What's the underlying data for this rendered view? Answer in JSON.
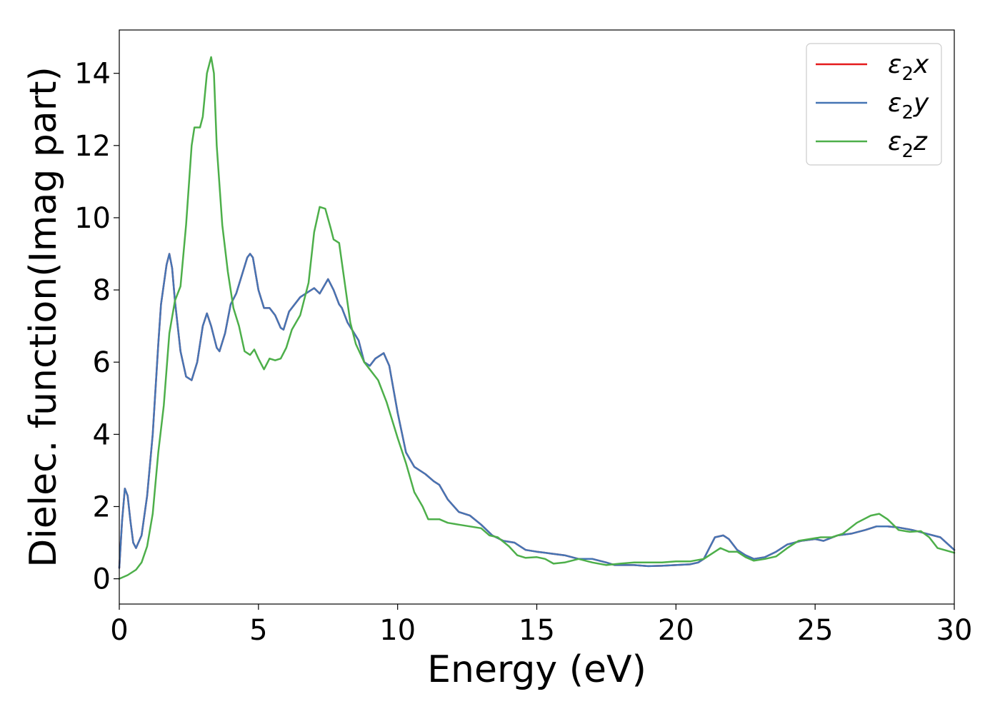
{
  "chart_data": {
    "type": "line",
    "title": "",
    "xlabel": "Energy (eV)",
    "ylabel": "Dielec. function(Imag part)",
    "xlim": [
      0,
      30
    ],
    "ylim": [
      -0.7,
      15.2
    ],
    "xticks": [
      "0",
      "5",
      "10",
      "15",
      "20",
      "25",
      "30"
    ],
    "yticks": [
      "0",
      "2",
      "4",
      "6",
      "8",
      "10",
      "12",
      "14"
    ],
    "grid": false,
    "legend_position": "top-right",
    "series": [
      {
        "name": "ε₂x",
        "legend_base": "ε",
        "legend_sub": "2",
        "legend_suffix": "x",
        "color": "#e41a1c",
        "points": [
          [
            0,
            0.3
          ],
          [
            0.1,
            1.6
          ],
          [
            0.2,
            2.5
          ],
          [
            0.3,
            2.3
          ],
          [
            0.4,
            1.6
          ],
          [
            0.5,
            1.0
          ],
          [
            0.6,
            0.85
          ],
          [
            0.8,
            1.2
          ],
          [
            1.0,
            2.3
          ],
          [
            1.2,
            4.0
          ],
          [
            1.4,
            6.5
          ],
          [
            1.5,
            7.6
          ],
          [
            1.7,
            8.7
          ],
          [
            1.8,
            9.0
          ],
          [
            1.9,
            8.6
          ],
          [
            2.0,
            7.7
          ],
          [
            2.2,
            6.3
          ],
          [
            2.4,
            5.6
          ],
          [
            2.6,
            5.5
          ],
          [
            2.8,
            6.0
          ],
          [
            3.0,
            7.0
          ],
          [
            3.15,
            7.35
          ],
          [
            3.3,
            7.0
          ],
          [
            3.5,
            6.4
          ],
          [
            3.6,
            6.3
          ],
          [
            3.8,
            6.8
          ],
          [
            4.0,
            7.6
          ],
          [
            4.2,
            7.9
          ],
          [
            4.4,
            8.4
          ],
          [
            4.6,
            8.9
          ],
          [
            4.7,
            9.0
          ],
          [
            4.8,
            8.9
          ],
          [
            5.0,
            8.0
          ],
          [
            5.2,
            7.5
          ],
          [
            5.4,
            7.5
          ],
          [
            5.6,
            7.3
          ],
          [
            5.8,
            6.95
          ],
          [
            5.9,
            6.9
          ],
          [
            6.1,
            7.4
          ],
          [
            6.5,
            7.8
          ],
          [
            7.0,
            8.05
          ],
          [
            7.2,
            7.9
          ],
          [
            7.5,
            8.3
          ],
          [
            7.7,
            8.0
          ],
          [
            7.9,
            7.6
          ],
          [
            8.0,
            7.5
          ],
          [
            8.2,
            7.1
          ],
          [
            8.4,
            6.85
          ],
          [
            8.6,
            6.6
          ],
          [
            8.8,
            6.0
          ],
          [
            9.0,
            5.9
          ],
          [
            9.2,
            6.1
          ],
          [
            9.5,
            6.25
          ],
          [
            9.7,
            5.9
          ],
          [
            10.0,
            4.6
          ],
          [
            10.3,
            3.5
          ],
          [
            10.6,
            3.1
          ],
          [
            11.0,
            2.9
          ],
          [
            11.3,
            2.7
          ],
          [
            11.5,
            2.6
          ],
          [
            11.8,
            2.2
          ],
          [
            12.2,
            1.85
          ],
          [
            12.6,
            1.75
          ],
          [
            13.0,
            1.5
          ],
          [
            13.4,
            1.2
          ],
          [
            13.8,
            1.05
          ],
          [
            14.2,
            1.0
          ],
          [
            14.6,
            0.8
          ],
          [
            15.0,
            0.75
          ],
          [
            15.5,
            0.7
          ],
          [
            16.0,
            0.65
          ],
          [
            16.5,
            0.55
          ],
          [
            17.0,
            0.55
          ],
          [
            17.5,
            0.45
          ],
          [
            17.8,
            0.38
          ],
          [
            18.0,
            0.38
          ],
          [
            18.5,
            0.38
          ],
          [
            19.0,
            0.35
          ],
          [
            19.5,
            0.36
          ],
          [
            20.0,
            0.38
          ],
          [
            20.5,
            0.4
          ],
          [
            20.8,
            0.45
          ],
          [
            21.0,
            0.55
          ],
          [
            21.2,
            0.85
          ],
          [
            21.4,
            1.15
          ],
          [
            21.7,
            1.2
          ],
          [
            21.9,
            1.1
          ],
          [
            22.2,
            0.8
          ],
          [
            22.5,
            0.65
          ],
          [
            22.8,
            0.55
          ],
          [
            23.2,
            0.6
          ],
          [
            23.6,
            0.75
          ],
          [
            24.0,
            0.95
          ],
          [
            24.5,
            1.05
          ],
          [
            25.0,
            1.1
          ],
          [
            25.3,
            1.05
          ],
          [
            25.8,
            1.2
          ],
          [
            26.3,
            1.25
          ],
          [
            26.8,
            1.35
          ],
          [
            27.2,
            1.45
          ],
          [
            27.6,
            1.45
          ],
          [
            28.0,
            1.42
          ],
          [
            28.5,
            1.35
          ],
          [
            29.0,
            1.25
          ],
          [
            29.5,
            1.15
          ],
          [
            30.0,
            0.8
          ]
        ]
      },
      {
        "name": "ε₂y",
        "legend_base": "ε",
        "legend_sub": "2",
        "legend_suffix": "y",
        "color": "#4575b4",
        "points": [
          [
            0,
            0.3
          ],
          [
            0.1,
            1.6
          ],
          [
            0.2,
            2.5
          ],
          [
            0.3,
            2.3
          ],
          [
            0.4,
            1.6
          ],
          [
            0.5,
            1.0
          ],
          [
            0.6,
            0.85
          ],
          [
            0.8,
            1.2
          ],
          [
            1.0,
            2.3
          ],
          [
            1.2,
            4.0
          ],
          [
            1.4,
            6.5
          ],
          [
            1.5,
            7.6
          ],
          [
            1.7,
            8.7
          ],
          [
            1.8,
            9.0
          ],
          [
            1.9,
            8.6
          ],
          [
            2.0,
            7.7
          ],
          [
            2.2,
            6.3
          ],
          [
            2.4,
            5.6
          ],
          [
            2.6,
            5.5
          ],
          [
            2.8,
            6.0
          ],
          [
            3.0,
            7.0
          ],
          [
            3.15,
            7.35
          ],
          [
            3.3,
            7.0
          ],
          [
            3.5,
            6.4
          ],
          [
            3.6,
            6.3
          ],
          [
            3.8,
            6.8
          ],
          [
            4.0,
            7.6
          ],
          [
            4.2,
            7.9
          ],
          [
            4.4,
            8.4
          ],
          [
            4.6,
            8.9
          ],
          [
            4.7,
            9.0
          ],
          [
            4.8,
            8.9
          ],
          [
            5.0,
            8.0
          ],
          [
            5.2,
            7.5
          ],
          [
            5.4,
            7.5
          ],
          [
            5.6,
            7.3
          ],
          [
            5.8,
            6.95
          ],
          [
            5.9,
            6.9
          ],
          [
            6.1,
            7.4
          ],
          [
            6.5,
            7.8
          ],
          [
            7.0,
            8.05
          ],
          [
            7.2,
            7.9
          ],
          [
            7.5,
            8.3
          ],
          [
            7.7,
            8.0
          ],
          [
            7.9,
            7.6
          ],
          [
            8.0,
            7.5
          ],
          [
            8.2,
            7.1
          ],
          [
            8.4,
            6.85
          ],
          [
            8.6,
            6.6
          ],
          [
            8.8,
            6.0
          ],
          [
            9.0,
            5.9
          ],
          [
            9.2,
            6.1
          ],
          [
            9.5,
            6.25
          ],
          [
            9.7,
            5.9
          ],
          [
            10.0,
            4.6
          ],
          [
            10.3,
            3.5
          ],
          [
            10.6,
            3.1
          ],
          [
            11.0,
            2.9
          ],
          [
            11.3,
            2.7
          ],
          [
            11.5,
            2.6
          ],
          [
            11.8,
            2.2
          ],
          [
            12.2,
            1.85
          ],
          [
            12.6,
            1.75
          ],
          [
            13.0,
            1.5
          ],
          [
            13.4,
            1.2
          ],
          [
            13.8,
            1.05
          ],
          [
            14.2,
            1.0
          ],
          [
            14.6,
            0.8
          ],
          [
            15.0,
            0.75
          ],
          [
            15.5,
            0.7
          ],
          [
            16.0,
            0.65
          ],
          [
            16.5,
            0.55
          ],
          [
            17.0,
            0.55
          ],
          [
            17.5,
            0.45
          ],
          [
            17.8,
            0.38
          ],
          [
            18.0,
            0.38
          ],
          [
            18.5,
            0.38
          ],
          [
            19.0,
            0.35
          ],
          [
            19.5,
            0.36
          ],
          [
            20.0,
            0.38
          ],
          [
            20.5,
            0.4
          ],
          [
            20.8,
            0.45
          ],
          [
            21.0,
            0.55
          ],
          [
            21.2,
            0.85
          ],
          [
            21.4,
            1.15
          ],
          [
            21.7,
            1.2
          ],
          [
            21.9,
            1.1
          ],
          [
            22.2,
            0.8
          ],
          [
            22.5,
            0.65
          ],
          [
            22.8,
            0.55
          ],
          [
            23.2,
            0.6
          ],
          [
            23.6,
            0.75
          ],
          [
            24.0,
            0.95
          ],
          [
            24.5,
            1.05
          ],
          [
            25.0,
            1.1
          ],
          [
            25.3,
            1.05
          ],
          [
            25.8,
            1.2
          ],
          [
            26.3,
            1.25
          ],
          [
            26.8,
            1.35
          ],
          [
            27.2,
            1.45
          ],
          [
            27.6,
            1.45
          ],
          [
            28.0,
            1.42
          ],
          [
            28.5,
            1.35
          ],
          [
            29.0,
            1.25
          ],
          [
            29.5,
            1.15
          ],
          [
            30.0,
            0.8
          ]
        ]
      },
      {
        "name": "ε₂z",
        "legend_base": "ε",
        "legend_sub": "2",
        "legend_suffix": "z",
        "color": "#4daf4a",
        "points": [
          [
            0,
            0.0
          ],
          [
            0.3,
            0.1
          ],
          [
            0.6,
            0.25
          ],
          [
            0.8,
            0.45
          ],
          [
            1.0,
            0.9
          ],
          [
            1.2,
            1.8
          ],
          [
            1.4,
            3.5
          ],
          [
            1.6,
            4.8
          ],
          [
            1.8,
            6.8
          ],
          [
            2.0,
            7.7
          ],
          [
            2.2,
            8.1
          ],
          [
            2.4,
            9.8
          ],
          [
            2.6,
            12.0
          ],
          [
            2.7,
            12.5
          ],
          [
            2.9,
            12.5
          ],
          [
            3.0,
            12.8
          ],
          [
            3.15,
            14.0
          ],
          [
            3.3,
            14.45
          ],
          [
            3.4,
            14.0
          ],
          [
            3.5,
            12.0
          ],
          [
            3.7,
            9.8
          ],
          [
            3.9,
            8.5
          ],
          [
            4.1,
            7.5
          ],
          [
            4.3,
            7.0
          ],
          [
            4.5,
            6.3
          ],
          [
            4.7,
            6.2
          ],
          [
            4.85,
            6.35
          ],
          [
            5.0,
            6.1
          ],
          [
            5.2,
            5.8
          ],
          [
            5.4,
            6.1
          ],
          [
            5.6,
            6.05
          ],
          [
            5.8,
            6.1
          ],
          [
            6.0,
            6.4
          ],
          [
            6.2,
            6.9
          ],
          [
            6.5,
            7.3
          ],
          [
            6.8,
            8.2
          ],
          [
            7.0,
            9.6
          ],
          [
            7.2,
            10.3
          ],
          [
            7.4,
            10.25
          ],
          [
            7.6,
            9.7
          ],
          [
            7.7,
            9.4
          ],
          [
            7.9,
            9.3
          ],
          [
            8.1,
            8.2
          ],
          [
            8.3,
            7.1
          ],
          [
            8.5,
            6.5
          ],
          [
            8.8,
            6.0
          ],
          [
            9.0,
            5.8
          ],
          [
            9.3,
            5.5
          ],
          [
            9.6,
            4.9
          ],
          [
            10.0,
            3.9
          ],
          [
            10.3,
            3.2
          ],
          [
            10.6,
            2.4
          ],
          [
            10.9,
            2.0
          ],
          [
            11.1,
            1.65
          ],
          [
            11.5,
            1.65
          ],
          [
            11.8,
            1.55
          ],
          [
            12.2,
            1.5
          ],
          [
            12.6,
            1.45
          ],
          [
            13.0,
            1.4
          ],
          [
            13.3,
            1.2
          ],
          [
            13.6,
            1.15
          ],
          [
            14.0,
            0.9
          ],
          [
            14.3,
            0.65
          ],
          [
            14.6,
            0.58
          ],
          [
            15.0,
            0.6
          ],
          [
            15.3,
            0.55
          ],
          [
            15.6,
            0.42
          ],
          [
            16.0,
            0.45
          ],
          [
            16.5,
            0.55
          ],
          [
            17.0,
            0.45
          ],
          [
            17.5,
            0.38
          ],
          [
            18.0,
            0.42
          ],
          [
            18.5,
            0.45
          ],
          [
            19.0,
            0.45
          ],
          [
            19.5,
            0.45
          ],
          [
            20.0,
            0.48
          ],
          [
            20.5,
            0.48
          ],
          [
            21.0,
            0.55
          ],
          [
            21.3,
            0.7
          ],
          [
            21.6,
            0.85
          ],
          [
            21.9,
            0.75
          ],
          [
            22.2,
            0.75
          ],
          [
            22.5,
            0.6
          ],
          [
            22.8,
            0.5
          ],
          [
            23.2,
            0.55
          ],
          [
            23.6,
            0.62
          ],
          [
            24.0,
            0.85
          ],
          [
            24.4,
            1.05
          ],
          [
            24.8,
            1.1
          ],
          [
            25.2,
            1.15
          ],
          [
            25.6,
            1.15
          ],
          [
            26.0,
            1.25
          ],
          [
            26.5,
            1.55
          ],
          [
            27.0,
            1.75
          ],
          [
            27.3,
            1.8
          ],
          [
            27.6,
            1.65
          ],
          [
            28.0,
            1.35
          ],
          [
            28.4,
            1.3
          ],
          [
            28.8,
            1.32
          ],
          [
            29.1,
            1.15
          ],
          [
            29.4,
            0.85
          ],
          [
            30.0,
            0.72
          ]
        ]
      }
    ]
  }
}
